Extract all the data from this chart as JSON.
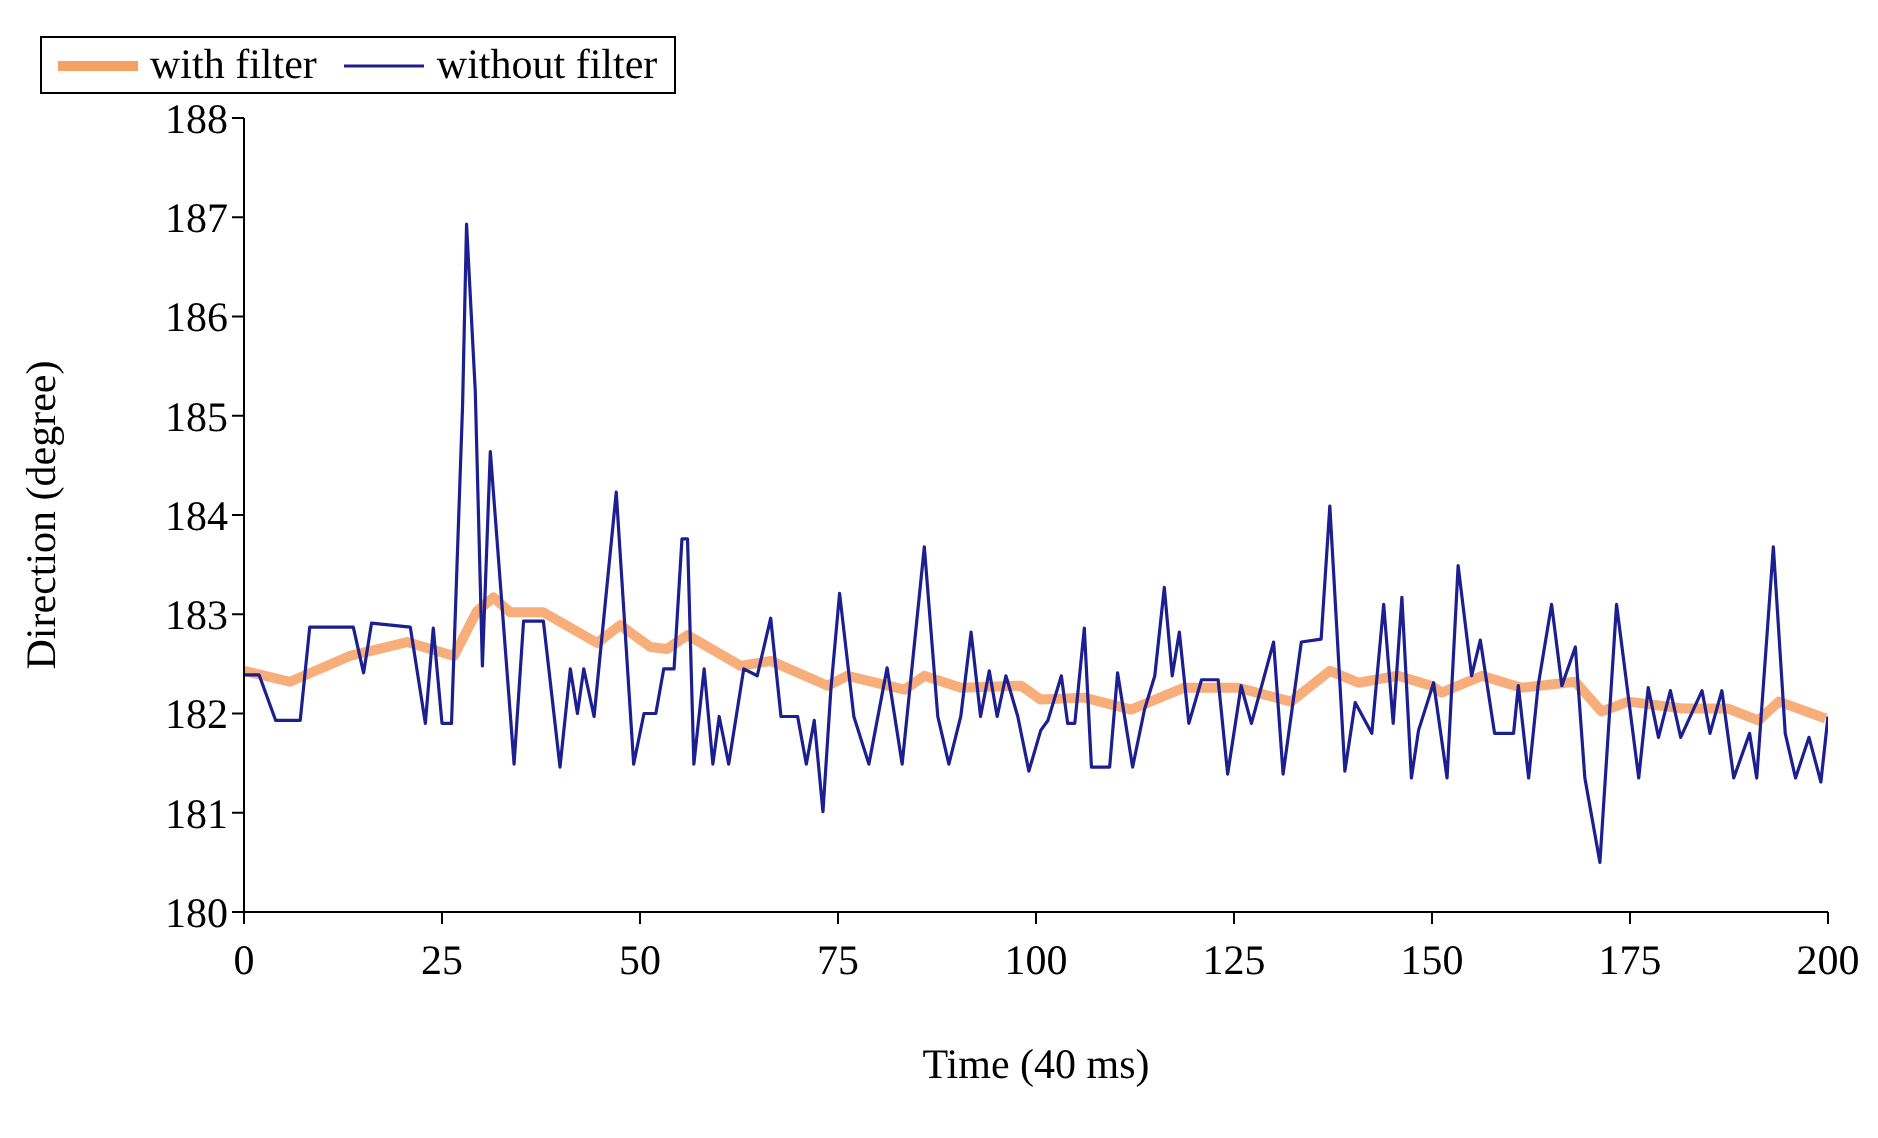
{
  "chart_data": {
    "type": "line",
    "xlabel": "Time (40 ms)",
    "ylabel": "Direction (degree)",
    "xlim": [
      0,
      200
    ],
    "xticks": [
      0,
      25,
      50,
      75,
      100,
      125,
      150,
      175,
      200
    ],
    "ylim": [
      180,
      188
    ],
    "yticks": [
      180,
      181,
      182,
      183,
      184,
      185,
      186,
      187,
      188
    ],
    "grid": false,
    "legend": "top",
    "marker": "none",
    "line_style": "solid",
    "series": [
      {
        "name": "with filter",
        "color": "#f7a064",
        "x": [
          0,
          5.8,
          13.4,
          20.6,
          26.5,
          29.4,
          31.5,
          33.6,
          37.8,
          44.6,
          47.5,
          51.3,
          53.4,
          56,
          62.7,
          66.5,
          73.7,
          76.2,
          83.4,
          85.9,
          90.5,
          98.1,
          100.6,
          106.1,
          112,
          118.7,
          125.5,
          132.2,
          137.1,
          140.7,
          145.7,
          149.9,
          151.2,
          156.3,
          161.3,
          168.1,
          171.4,
          174.8,
          181.6,
          187.4,
          191.2,
          193.8,
          199.7
        ],
        "values": [
          182.43,
          182.32,
          182.58,
          182.72,
          182.58,
          183.03,
          183.17,
          183.02,
          183.02,
          182.71,
          182.89,
          182.67,
          182.65,
          182.79,
          182.48,
          182.53,
          182.28,
          182.38,
          182.24,
          182.38,
          182.26,
          182.28,
          182.14,
          182.16,
          182.04,
          182.26,
          182.26,
          182.12,
          182.43,
          182.31,
          182.38,
          182.28,
          182.21,
          182.38,
          182.26,
          182.32,
          182.02,
          182.12,
          182.05,
          182.05,
          181.93,
          182.12,
          181.95
        ]
      },
      {
        "name": "without filter",
        "color": "#1c1f8f",
        "x": [
          0,
          1.9,
          4,
          7.1,
          8.3,
          13.8,
          15.1,
          16.1,
          21,
          22.9,
          23.9,
          25,
          26.2,
          27.6,
          28.1,
          29.2,
          30.1,
          31.1,
          34.1,
          35.3,
          37.8,
          39.9,
          41.2,
          42.1,
          42.9,
          44.2,
          47,
          49.2,
          50.5,
          52,
          53,
          54.3,
          55.3,
          56,
          56.8,
          58.1,
          59.2,
          60,
          61.2,
          63.1,
          64.8,
          66.5,
          67.8,
          69.9,
          71,
          72,
          73.1,
          74.1,
          75.2,
          77,
          78.9,
          81.2,
          83.1,
          85.9,
          87.6,
          89,
          90.5,
          91.8,
          93,
          94.1,
          95.1,
          96.2,
          97.7,
          99.1,
          100.6,
          101.5,
          103.2,
          104,
          104.9,
          106.1,
          107,
          109.3,
          110.3,
          112.2,
          113.7,
          115,
          116.2,
          117.2,
          118.1,
          119.3,
          120.9,
          123,
          124.2,
          125.9,
          127.2,
          130,
          131.2,
          133.5,
          136,
          137.1,
          139,
          140.3,
          142.4,
          143.9,
          145.1,
          146.2,
          147.4,
          148.3,
          150.2,
          151.9,
          153.3,
          155,
          156.1,
          157.9,
          160.3,
          160.9,
          162.2,
          163.4,
          165.1,
          166.4,
          168.1,
          169.3,
          171.2,
          173.3,
          176.1,
          177.3,
          178.6,
          180.1,
          181.4,
          184.1,
          185.1,
          186.6,
          188.1,
          190.1,
          191,
          193.1,
          194.6,
          195.9,
          197.6,
          199.1,
          200
        ],
        "values": [
          182.39,
          182.39,
          181.93,
          181.93,
          182.87,
          182.87,
          182.41,
          182.91,
          182.87,
          181.9,
          182.86,
          181.9,
          181.9,
          185.11,
          186.93,
          185.25,
          182.48,
          184.64,
          181.49,
          182.93,
          182.93,
          181.46,
          182.45,
          182,
          182.45,
          181.97,
          184.23,
          181.49,
          182,
          182,
          182.45,
          182.45,
          183.76,
          183.76,
          181.49,
          182.45,
          181.49,
          181.97,
          181.49,
          182.45,
          182.38,
          182.96,
          181.97,
          181.97,
          181.49,
          181.93,
          181.01,
          182.24,
          183.21,
          181.97,
          181.49,
          182.46,
          181.49,
          183.68,
          181.97,
          181.49,
          181.97,
          182.82,
          181.97,
          182.43,
          181.97,
          182.38,
          181.97,
          181.42,
          181.83,
          181.93,
          182.38,
          181.9,
          181.9,
          182.86,
          181.46,
          181.46,
          182.41,
          181.46,
          182.04,
          182.38,
          183.27,
          182.38,
          182.82,
          181.9,
          182.34,
          182.34,
          181.39,
          182.28,
          181.9,
          182.72,
          181.39,
          182.72,
          182.75,
          184.09,
          181.42,
          182.11,
          181.8,
          183.1,
          181.9,
          183.17,
          181.35,
          181.83,
          182.31,
          181.35,
          183.49,
          182.38,
          182.74,
          181.8,
          181.8,
          182.28,
          181.35,
          182.28,
          183.1,
          182.28,
          182.67,
          181.35,
          180.5,
          183.1,
          181.35,
          182.26,
          181.76,
          182.23,
          181.76,
          182.23,
          181.8,
          182.23,
          181.35,
          181.8,
          181.35,
          183.68,
          181.8,
          181.35,
          181.76,
          181.31,
          181.97
        ]
      }
    ]
  }
}
